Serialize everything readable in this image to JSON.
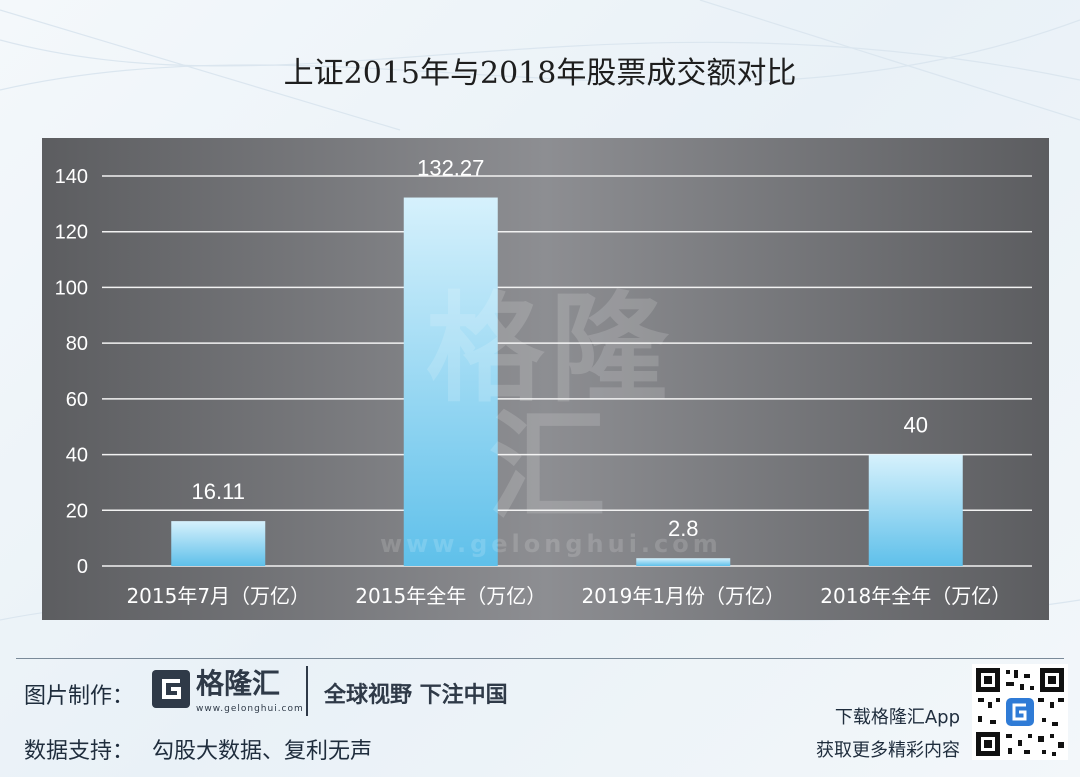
{
  "title": "上证2015年与2018年股票成交额对比",
  "watermark": {
    "logo": "格隆汇",
    "url": "www.gelonghui.com"
  },
  "chart_data": {
    "type": "bar",
    "title": "上证2015年与2018年股票成交额对比",
    "categories": [
      "2015年7月（万亿）",
      "2015年全年（万亿）",
      "2019年1月份（万亿）",
      "2018年全年（万亿）"
    ],
    "values": [
      16.11,
      132.27,
      2.8,
      40
    ],
    "data_labels": [
      "16.11",
      "132.27",
      "2.8",
      "40"
    ],
    "yticks": [
      "0",
      "20",
      "40",
      "60",
      "80",
      "100",
      "120",
      "140"
    ],
    "ylim": [
      0,
      140
    ],
    "grid": true,
    "colors": {
      "bar_top": "#d6f1fc",
      "bar_bottom": "#5fc0ea",
      "panel": "#7a7b7f",
      "grid": "#f2f2f2"
    }
  },
  "footer": {
    "made_by_label": "图片制作：",
    "logo_text": "格隆汇",
    "logo_url": "www.gelonghui.com",
    "slogan": "全球视野 下注中国",
    "data_support_label": "数据支持：",
    "data_support_value": "勾股大数据、复利无声",
    "download": "下载格隆汇App",
    "more": "获取更多精彩内容"
  }
}
